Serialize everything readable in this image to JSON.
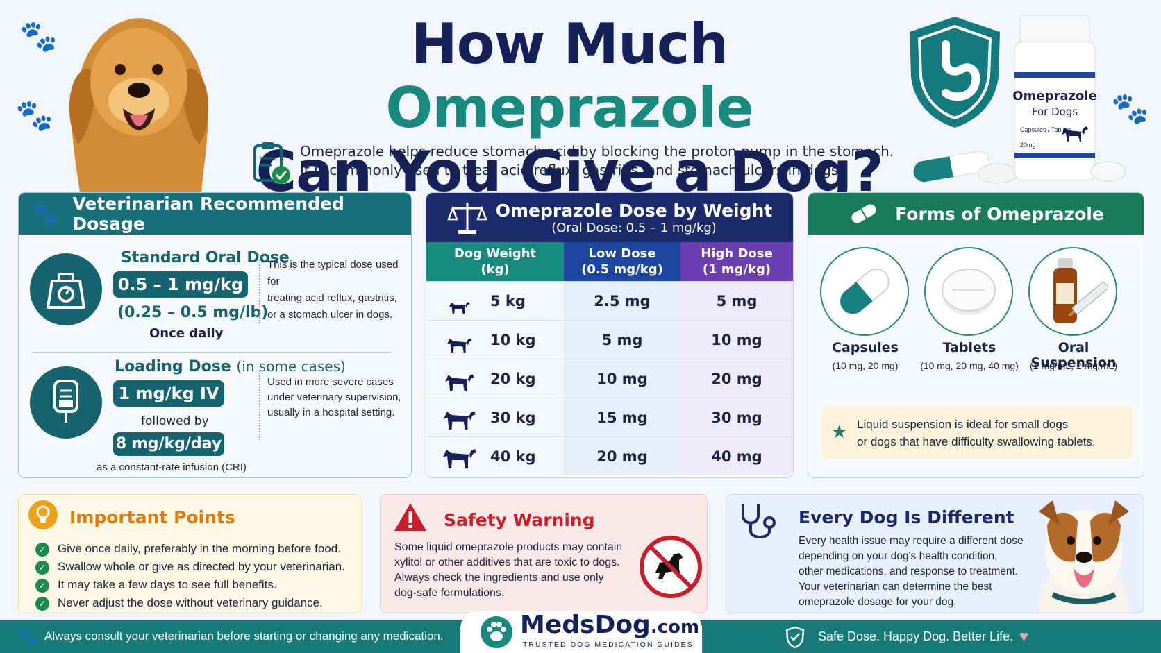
{
  "header": {
    "title_line1_part1": "How Much ",
    "title_line1_accent": "Omeprazole",
    "title_line2": "Can You Give a Dog?",
    "intro_line1": "Omeprazole helps reduce stomach acid by blocking the proton pump in the stomach.",
    "intro_line2": "It is commonly used to treat acid reflux, gastritis, and stomach ulcers in dogs."
  },
  "bottle": {
    "name": "Omeprazole",
    "for": "For Dogs",
    "sub": "Capsules / Tablets",
    "dose": "20mg"
  },
  "dosage_panel": {
    "title": "Veterinarian Recommended Dosage",
    "standard": {
      "heading": "Standard Oral Dose",
      "value": "0.5 – 1 mg/kg",
      "alt": "(0.25 – 0.5 mg/lb)",
      "frequency": "Once daily",
      "desc": [
        "This is the typical dose used for",
        "treating acid reflux, gastritis,",
        "or a stomach ulcer in dogs."
      ]
    },
    "loading": {
      "heading": "Loading Dose",
      "heading_note": "(in some cases)",
      "value1": "1 mg/kg IV",
      "followed": "followed by",
      "value2": "8 mg/kg/day",
      "cri": "as a constant-rate infusion (CRI)",
      "desc": [
        "Used in more severe cases",
        "under veterinary supervision,",
        "usually in a hospital setting."
      ]
    }
  },
  "table_panel": {
    "title": "Omeprazole Dose by Weight",
    "subtitle": "(Oral Dose: 0.5 – 1 mg/kg)",
    "headers": [
      {
        "l1": "Dog Weight",
        "l2": "(kg)"
      },
      {
        "l1": "Low Dose",
        "l2": "(0.5 mg/kg)"
      },
      {
        "l1": "High Dose",
        "l2": "(1 mg/kg)"
      }
    ],
    "rows": [
      {
        "weight": "5 kg",
        "low": "2.5 mg",
        "high": "5 mg"
      },
      {
        "weight": "10 kg",
        "low": "5 mg",
        "high": "10 mg"
      },
      {
        "weight": "20 kg",
        "low": "10 mg",
        "high": "20 mg"
      },
      {
        "weight": "30 kg",
        "low": "15 mg",
        "high": "30 mg"
      },
      {
        "weight": "40 kg",
        "low": "20 mg",
        "high": "40 mg"
      }
    ]
  },
  "forms_panel": {
    "title": "Forms of Omeprazole",
    "forms": [
      {
        "name": "Capsules",
        "sizes": "(10 mg, 20 mg)"
      },
      {
        "name": "Tablets",
        "sizes": "(10 mg, 20 mg, 40 mg)"
      },
      {
        "name": "Oral Suspension",
        "sizes": "(1 mg/mL, 2 mg/mL)"
      }
    ],
    "note_line1": "Liquid suspension is ideal for small dogs",
    "note_line2": "or dogs that have difficulty swallowing tablets."
  },
  "important": {
    "title": "Important Points",
    "items": [
      "Give once daily, preferably in the morning before food.",
      "Swallow whole or give as directed by your veterinarian.",
      "It may take a few days to see full benefits.",
      "Never adjust the dose without veterinary guidance."
    ]
  },
  "safety": {
    "title": "Safety Warning",
    "lines": [
      "Some liquid omeprazole products may contain",
      "xylitol or other additives that are toxic to dogs.",
      "Always check the ingredients and use only",
      "dog-safe formulations."
    ]
  },
  "every_dog": {
    "title": "Every Dog Is Different",
    "lines": [
      "Every health issue may require a different dose",
      "depending on your dog's health condition,",
      "other medications, and response to treatment.",
      "Your veterinarian can determine the best",
      "omeprazole dosage for your dog."
    ]
  },
  "footer": {
    "left": "Always consult your veterinarian before starting or changing any medication.",
    "brand_main": "MedsDog",
    "brand_tld": ".com",
    "brand_tagline": "TRUSTED DOG MEDICATION GUIDES",
    "right": "Safe Dose. Happy Dog. Better Life."
  },
  "colors": {
    "navy": "#16215a",
    "teal": "#17897f",
    "dark_teal": "#17636f",
    "green": "#1a7b5c",
    "purple": "#6b3fb1",
    "blue": "#1d46a0",
    "warning_red": "#c8202a",
    "orange": "#e07b10"
  }
}
